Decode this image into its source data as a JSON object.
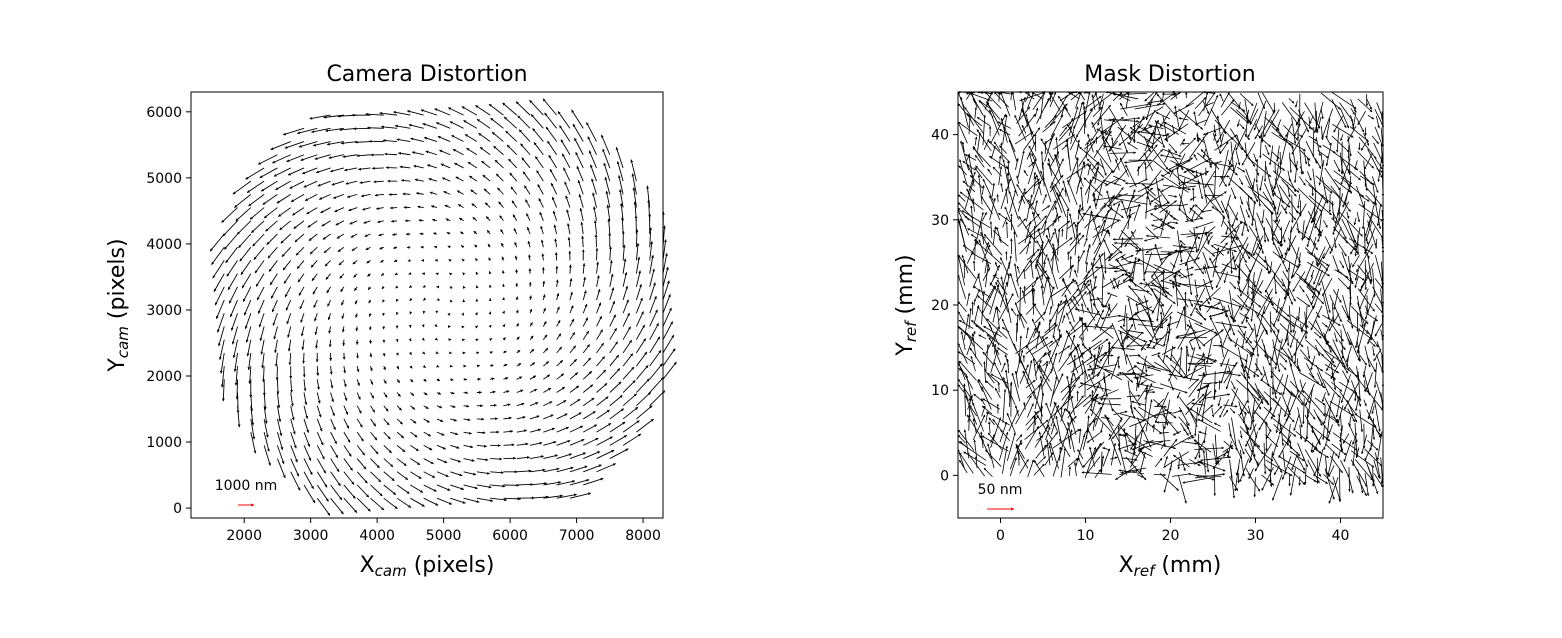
{
  "chart_data": [
    {
      "type": "quiver",
      "title": "Camera Distortion",
      "xlabel": {
        "main": "X",
        "sub": "cam",
        "unit": " (pixels)"
      },
      "ylabel": {
        "main": "Y",
        "sub": "cam",
        "unit": " (pixels)"
      },
      "xlim": [
        1200,
        8300
      ],
      "ylim": [
        -150,
        6300
      ],
      "xticks": [
        2000,
        3000,
        4000,
        5000,
        6000,
        7000,
        8000
      ],
      "yticks": [
        0,
        1000,
        2000,
        3000,
        4000,
        5000,
        6000
      ],
      "field": {
        "pattern": "swirl",
        "center": [
          5000,
          3000
        ],
        "grid_start": [
          1500,
          150
        ],
        "grid_step": 200,
        "clip_radius": 3500,
        "x_range": [
          1500,
          8300
        ],
        "y_range": [
          150,
          6000
        ],
        "max_vector_nm": 1000
      },
      "key": {
        "label": "1000 nm",
        "length_nm": 1000,
        "x": 2000,
        "y": 50,
        "color": "#ff0000"
      }
    },
    {
      "type": "quiver",
      "title": "Mask Distortion",
      "xlabel": {
        "main": "X",
        "sub": "ref",
        "unit": " (mm)"
      },
      "ylabel": {
        "main": "Y",
        "sub": "ref",
        "unit": " (mm)"
      },
      "xlim": [
        -5,
        45
      ],
      "ylim": [
        -5,
        45
      ],
      "xticks": [
        0,
        10,
        20,
        30,
        40
      ],
      "yticks": [
        0,
        10,
        20,
        30,
        40
      ],
      "field": {
        "pattern": "noisy",
        "grid_start": [
          -4,
          0
        ],
        "grid_step": 1.0,
        "x_range": [
          -4,
          45
        ],
        "y_range": [
          0,
          45
        ],
        "max_vector_nm": 50
      },
      "key": {
        "label": "50 nm",
        "length_nm": 50,
        "x": -1.5,
        "y": -4,
        "color": "#ff0000"
      }
    }
  ]
}
